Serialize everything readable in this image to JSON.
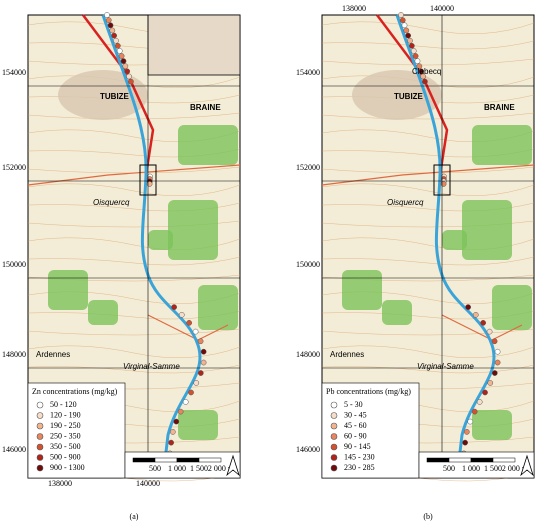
{
  "panels": [
    {
      "label": "(a)",
      "y_labels": [
        "154000",
        "152000",
        "150000",
        "148000",
        "146000"
      ],
      "x_labels": [
        "138000",
        "140000"
      ],
      "x_labels_side": "bottom",
      "legend": {
        "title": "Zn concentrations (mg/kg)",
        "items": [
          {
            "label": "50 - 120",
            "color": "#ffffff"
          },
          {
            "label": "120 - 190",
            "color": "#f9dcc8"
          },
          {
            "label": "190 - 250",
            "color": "#f2b48f"
          },
          {
            "label": "250 - 350",
            "color": "#e8855c"
          },
          {
            "label": "350 - 500",
            "color": "#d4512f"
          },
          {
            "label": "500 - 900",
            "color": "#b0241a"
          },
          {
            "label": "900 - 1300",
            "color": "#6e0b0b"
          }
        ]
      },
      "scale_labels": [
        "500",
        "1 000",
        "1 500",
        "2 000 m"
      ],
      "places": [
        "TUBIZE",
        "BRAINE",
        "Oisquercq",
        "Virginal-Samme",
        "Ardennes"
      ]
    },
    {
      "label": "(b)",
      "y_labels": [
        "154000",
        "152000",
        "150000",
        "148000",
        "146000"
      ],
      "x_labels": [
        "138000",
        "140000"
      ],
      "x_labels_side": "top",
      "legend": {
        "title": "Pb concentrations (mg/kg)",
        "items": [
          {
            "label": "5 - 30",
            "color": "#ffffff"
          },
          {
            "label": "30 - 45",
            "color": "#f9dcc8"
          },
          {
            "label": "45 - 60",
            "color": "#f2b48f"
          },
          {
            "label": "60 - 90",
            "color": "#e8855c"
          },
          {
            "label": "90 - 145",
            "color": "#d4512f"
          },
          {
            "label": "145 - 230",
            "color": "#b0241a"
          },
          {
            "label": "230 - 285",
            "color": "#6e0b0b"
          }
        ]
      },
      "scale_labels": [
        "500",
        "1 000",
        "1 500",
        "2 000 m"
      ],
      "places": [
        "TUBIZE",
        "BRAINE",
        "Oisquercq",
        "Virginal-Samme",
        "Ardennes",
        "Clabecq"
      ]
    }
  ]
}
